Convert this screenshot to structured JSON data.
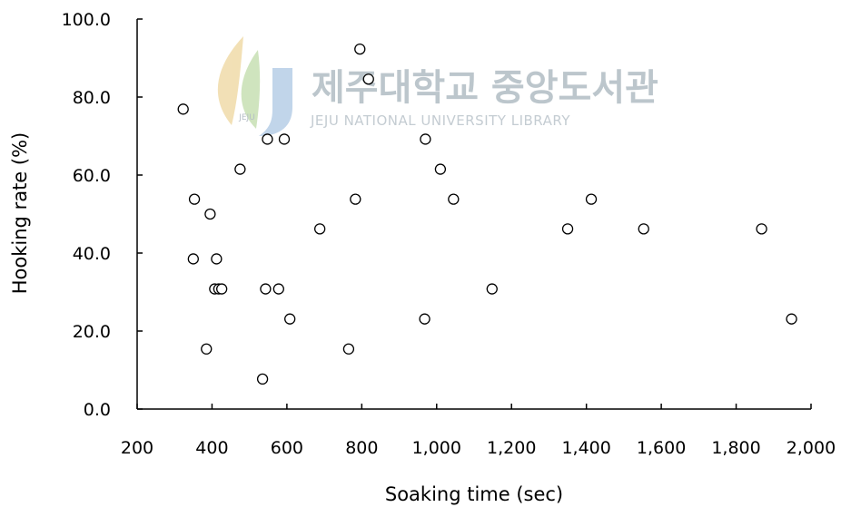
{
  "watermark": {
    "title": "제주대학교 중앙도서관",
    "subtitle": "JEJU NATIONAL UNIVERSITY  LIBRARY",
    "emblem": "JEJU"
  },
  "chart_data": {
    "type": "scatter",
    "title": "",
    "xlabel": "Soaking time (sec)",
    "ylabel": "Hooking rate (%)",
    "xlim": [
      200,
      2000
    ],
    "ylim": [
      0,
      100
    ],
    "xticks": [
      200,
      400,
      600,
      800,
      1000,
      1200,
      1400,
      1600,
      1800,
      2000
    ],
    "xtick_labels": [
      "200",
      "400",
      "600",
      "800",
      "1,000",
      "1,200",
      "1,400",
      "1,600",
      "1,800",
      "2,000"
    ],
    "yticks": [
      0,
      20,
      40,
      60,
      80,
      100
    ],
    "ytick_labels": [
      "0.0",
      "20.0",
      "40.0",
      "60.0",
      "80.0",
      "100.0"
    ],
    "grid": false,
    "marker": "open-circle",
    "series": [
      {
        "points": [
          {
            "x": 323,
            "y": 76.9
          },
          {
            "x": 353,
            "y": 53.8
          },
          {
            "x": 350,
            "y": 38.5
          },
          {
            "x": 385,
            "y": 15.4
          },
          {
            "x": 395,
            "y": 50.0
          },
          {
            "x": 407,
            "y": 30.8
          },
          {
            "x": 412,
            "y": 38.5
          },
          {
            "x": 418,
            "y": 30.8
          },
          {
            "x": 426,
            "y": 30.8
          },
          {
            "x": 475,
            "y": 61.5
          },
          {
            "x": 535,
            "y": 7.7
          },
          {
            "x": 543,
            "y": 30.8
          },
          {
            "x": 548,
            "y": 69.2
          },
          {
            "x": 578,
            "y": 30.8
          },
          {
            "x": 593,
            "y": 69.2
          },
          {
            "x": 608,
            "y": 23.1
          },
          {
            "x": 688,
            "y": 46.2
          },
          {
            "x": 765,
            "y": 15.4
          },
          {
            "x": 783,
            "y": 53.8
          },
          {
            "x": 795,
            "y": 92.3
          },
          {
            "x": 818,
            "y": 84.6
          },
          {
            "x": 968,
            "y": 23.1
          },
          {
            "x": 970,
            "y": 69.2
          },
          {
            "x": 1010,
            "y": 61.5
          },
          {
            "x": 1045,
            "y": 53.8
          },
          {
            "x": 1148,
            "y": 30.8
          },
          {
            "x": 1350,
            "y": 46.2
          },
          {
            "x": 1413,
            "y": 53.8
          },
          {
            "x": 1553,
            "y": 46.2
          },
          {
            "x": 1868,
            "y": 46.2
          },
          {
            "x": 1948,
            "y": 23.1
          }
        ]
      }
    ]
  }
}
